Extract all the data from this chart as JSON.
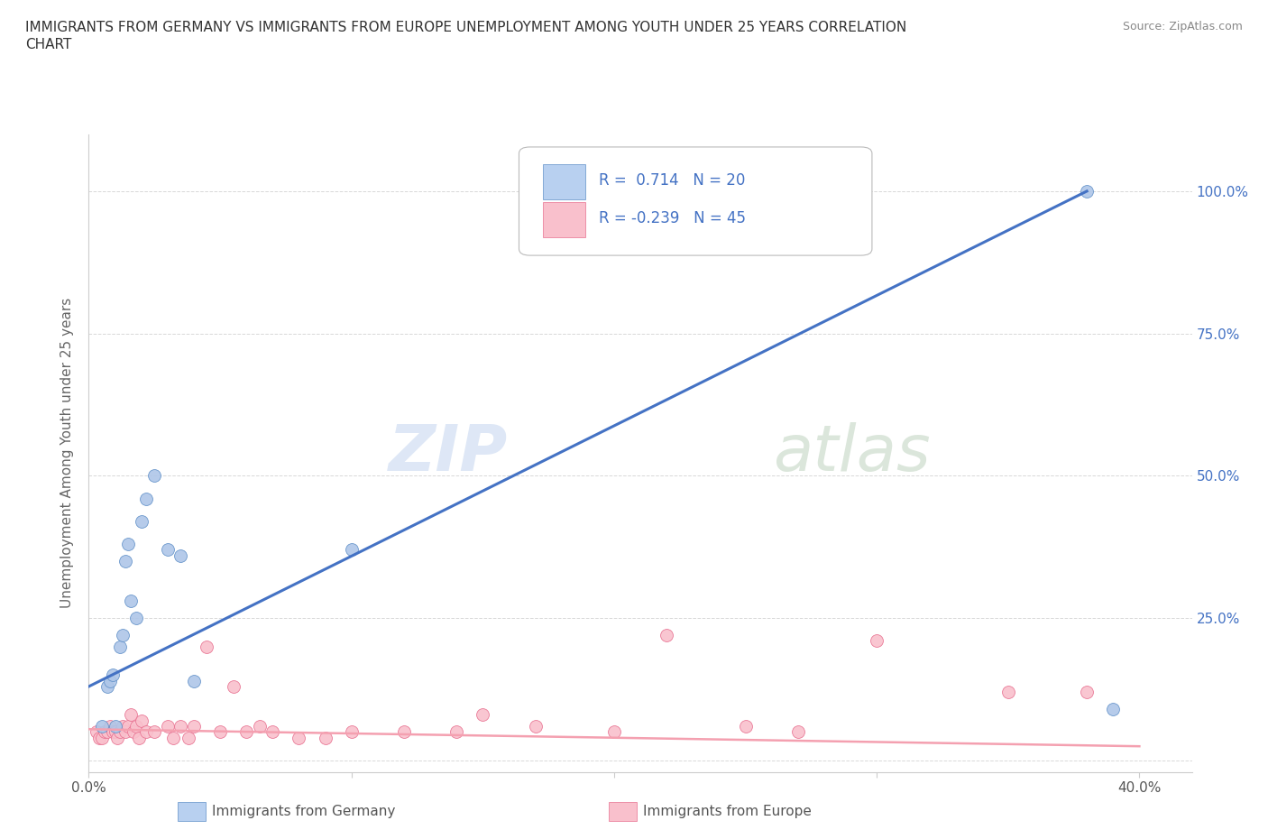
{
  "title": "IMMIGRANTS FROM GERMANY VS IMMIGRANTS FROM EUROPE UNEMPLOYMENT AMONG YOUTH UNDER 25 YEARS CORRELATION\nCHART",
  "source": "Source: ZipAtlas.com",
  "ylabel": "Unemployment Among Youth under 25 years",
  "xlim": [
    0.0,
    0.42
  ],
  "ylim": [
    -0.02,
    1.1
  ],
  "background_color": "#ffffff",
  "grid_color": "#d8d8d8",
  "watermark_zip": "ZIP",
  "watermark_atlas": "atlas",
  "blue_R": 0.714,
  "blue_N": 20,
  "pink_R": -0.239,
  "pink_N": 45,
  "blue_line_x": [
    0.0,
    0.38
  ],
  "blue_line_y": [
    0.13,
    1.0
  ],
  "pink_line_x": [
    0.0,
    0.4
  ],
  "pink_line_y": [
    0.055,
    0.025
  ],
  "blue_scatter_x": [
    0.005,
    0.007,
    0.008,
    0.009,
    0.01,
    0.012,
    0.013,
    0.014,
    0.015,
    0.016,
    0.018,
    0.02,
    0.022,
    0.025,
    0.03,
    0.035,
    0.04,
    0.1,
    0.38,
    0.39
  ],
  "blue_scatter_y": [
    0.06,
    0.13,
    0.14,
    0.15,
    0.06,
    0.2,
    0.22,
    0.35,
    0.38,
    0.28,
    0.25,
    0.42,
    0.46,
    0.5,
    0.37,
    0.36,
    0.14,
    0.37,
    1.0,
    0.09
  ],
  "pink_scatter_x": [
    0.003,
    0.004,
    0.005,
    0.006,
    0.007,
    0.008,
    0.009,
    0.01,
    0.011,
    0.012,
    0.013,
    0.014,
    0.015,
    0.016,
    0.017,
    0.018,
    0.019,
    0.02,
    0.022,
    0.025,
    0.03,
    0.032,
    0.035,
    0.038,
    0.04,
    0.045,
    0.05,
    0.055,
    0.06,
    0.065,
    0.07,
    0.08,
    0.09,
    0.1,
    0.12,
    0.14,
    0.15,
    0.17,
    0.2,
    0.22,
    0.25,
    0.27,
    0.3,
    0.35,
    0.38
  ],
  "pink_scatter_y": [
    0.05,
    0.04,
    0.04,
    0.05,
    0.05,
    0.06,
    0.05,
    0.05,
    0.04,
    0.05,
    0.06,
    0.05,
    0.06,
    0.08,
    0.05,
    0.06,
    0.04,
    0.07,
    0.05,
    0.05,
    0.06,
    0.04,
    0.06,
    0.04,
    0.06,
    0.2,
    0.05,
    0.13,
    0.05,
    0.06,
    0.05,
    0.04,
    0.04,
    0.05,
    0.05,
    0.05,
    0.08,
    0.06,
    0.05,
    0.22,
    0.06,
    0.05,
    0.21,
    0.12,
    0.12
  ],
  "blue_line_color": "#4472c4",
  "pink_line_color": "#f4a0b0",
  "blue_scatter_color": "#aec6e8",
  "pink_scatter_color": "#f9c0cc",
  "blue_edge_color": "#6090c8",
  "pink_edge_color": "#e87090",
  "legend_blue_fill": "#b8d0f0",
  "legend_pink_fill": "#f9c0cc",
  "legend_text_color": "#4472c4",
  "axis_text_color": "#4472c4",
  "ylabel_color": "#666666",
  "title_color": "#333333"
}
